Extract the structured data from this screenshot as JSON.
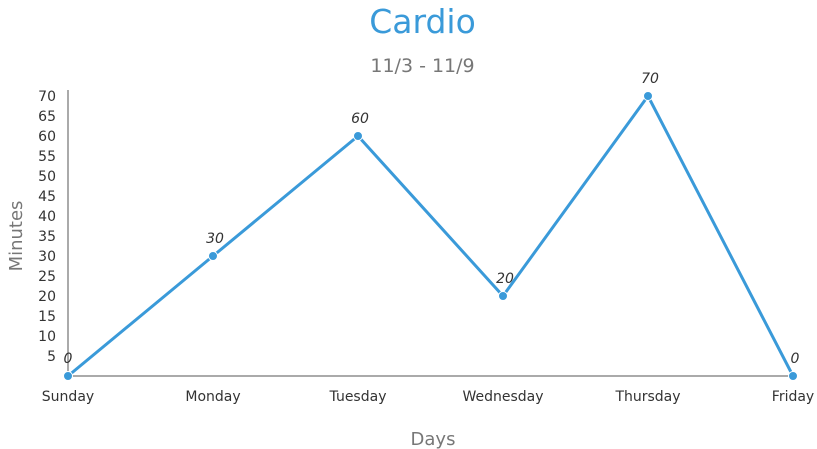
{
  "chart_data": {
    "type": "line",
    "title": "Cardio",
    "subtitle": "11/3 - 11/9",
    "xlabel": "Days",
    "ylabel": "Minutes",
    "categories": [
      "Sunday",
      "Monday",
      "Tuesday",
      "Wednesday",
      "Thursday",
      "Friday"
    ],
    "series": [
      {
        "values": [
          0,
          30,
          60,
          20,
          70,
          0
        ]
      }
    ],
    "ylim": [
      0,
      70
    ],
    "yticks": [
      5,
      10,
      15,
      20,
      25,
      30,
      35,
      40,
      45,
      50,
      55,
      60,
      65,
      70
    ],
    "grid": false,
    "legend": "none",
    "data_labels": true,
    "colors": {
      "line": "#3a9ad9",
      "title": "#3a9ad9",
      "subtitle": "#777777",
      "axis": "#777777"
    }
  }
}
